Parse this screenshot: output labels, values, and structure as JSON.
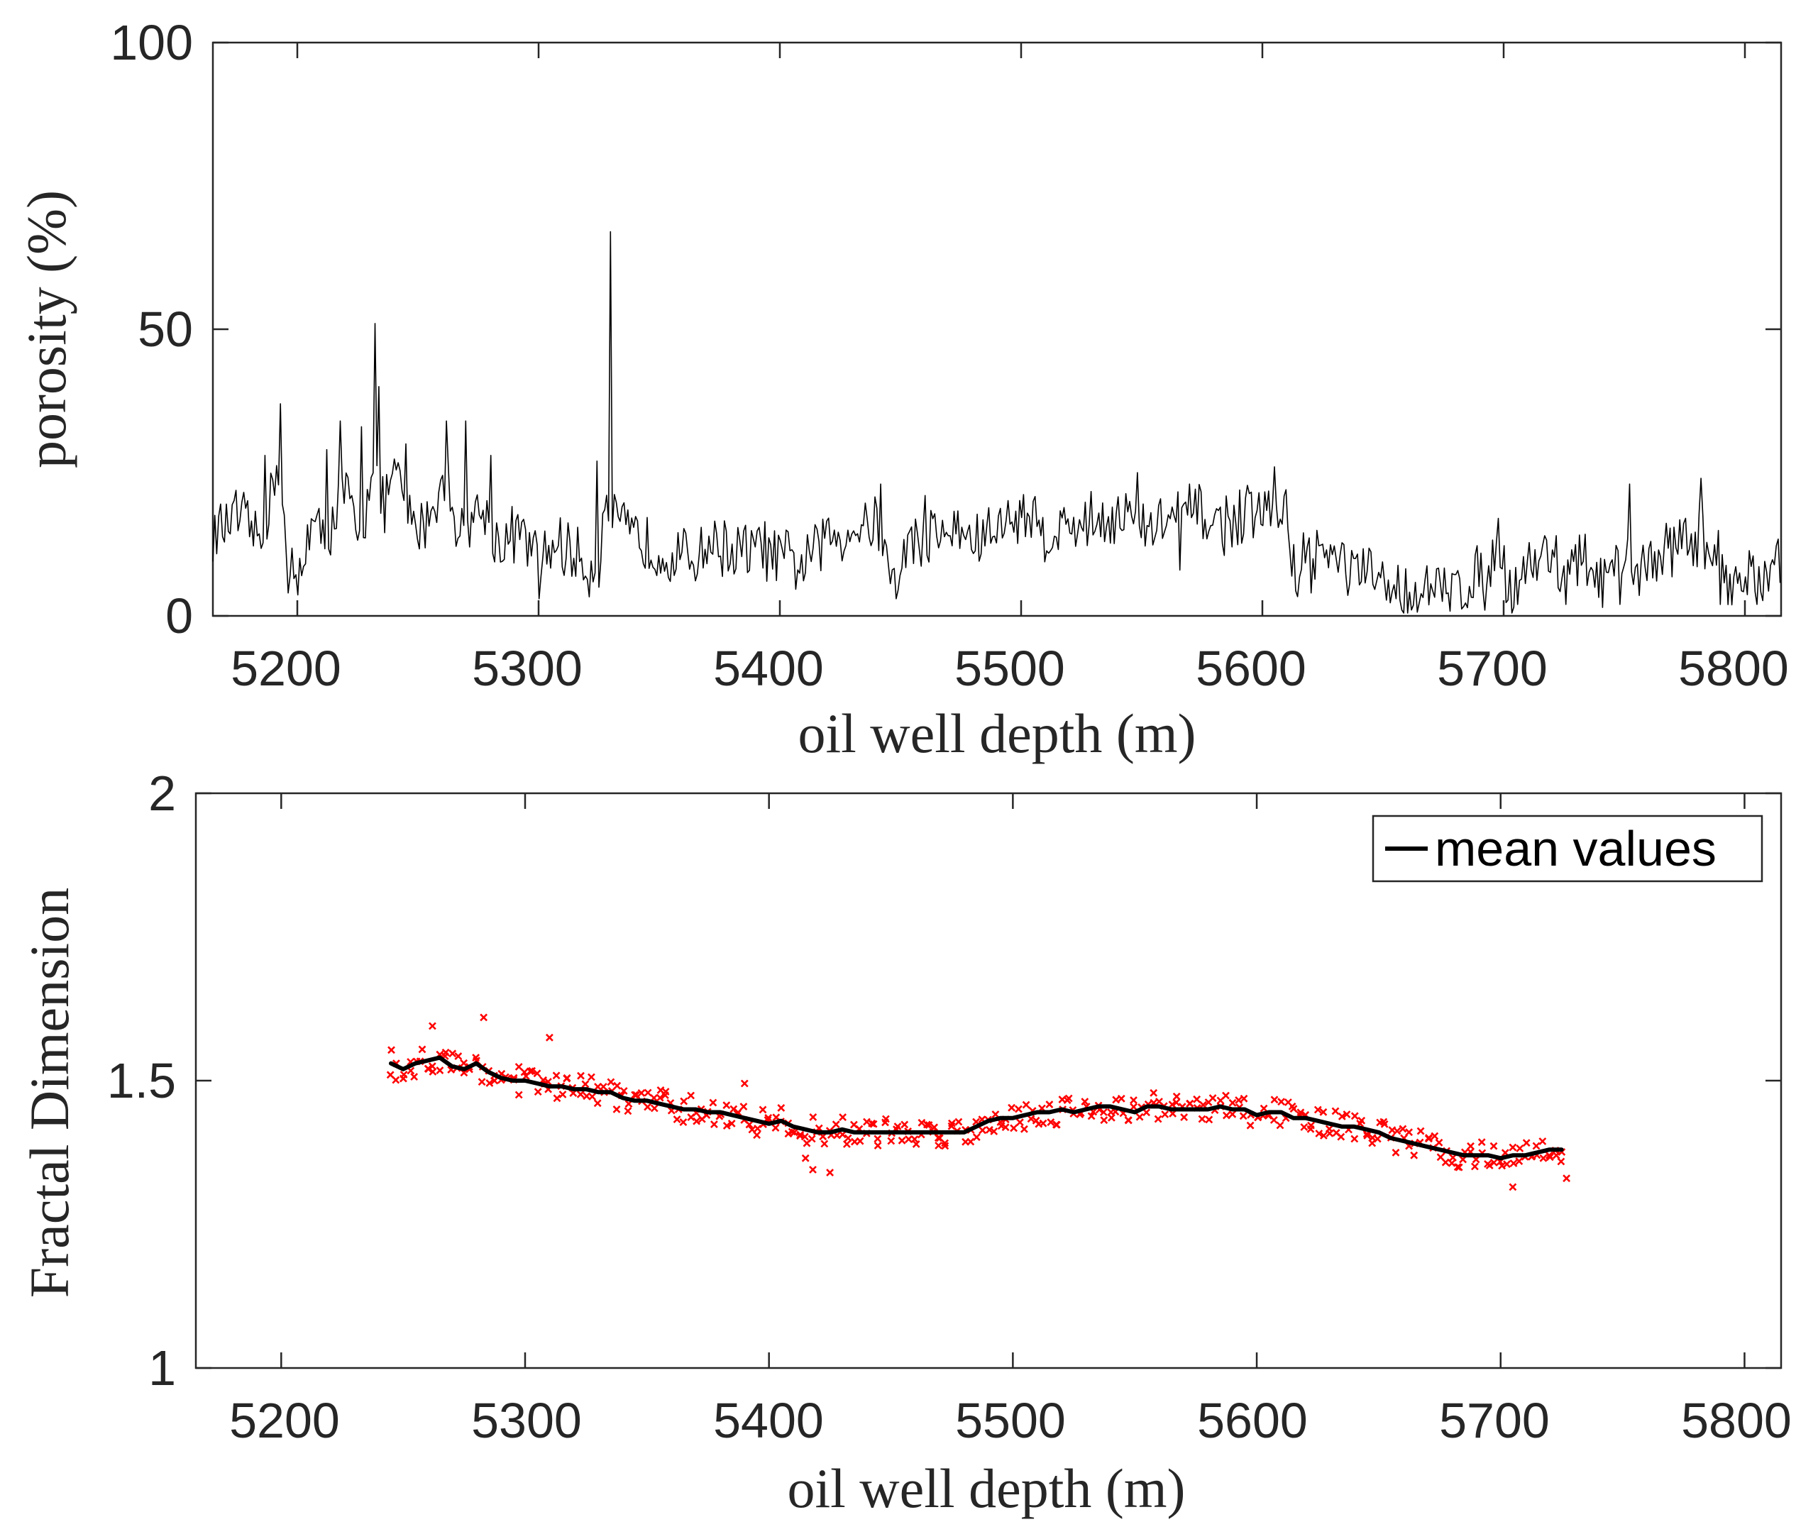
{
  "colors": {
    "axis": "#262626",
    "porosity_line": "#000000",
    "scatter": "#ff0000",
    "mean_line": "#000000"
  },
  "chart_data": [
    {
      "type": "line",
      "title": "",
      "xlabel": "oil well depth (m)",
      "ylabel": "porosity (%)",
      "xlim": [
        5165,
        5815
      ],
      "ylim": [
        0,
        100
      ],
      "xticks": [
        5200,
        5300,
        5400,
        5500,
        5600,
        5700,
        5800
      ],
      "yticks": [
        0,
        50,
        100
      ],
      "xtick_labels": [
        "5200",
        "5300",
        "5400",
        "5500",
        "5600",
        "5700",
        "5800"
      ],
      "ytick_labels": [
        "0",
        "50",
        "100"
      ],
      "series": [
        {
          "name": "porosity",
          "anchors": [
            [
              5165,
              14
            ],
            [
              5175,
              17
            ],
            [
              5185,
              13
            ],
            [
              5192,
              27
            ],
            [
              5196,
              9
            ],
            [
              5200,
              5
            ],
            [
              5205,
              16
            ],
            [
              5212,
              13
            ],
            [
              5220,
              22
            ],
            [
              5226,
              12
            ],
            [
              5232,
              30
            ],
            [
              5235,
              18
            ],
            [
              5240,
              25
            ],
            [
              5248,
              15
            ],
            [
              5255,
              18
            ],
            [
              5262,
              24
            ],
            [
              5268,
              14
            ],
            [
              5276,
              19
            ],
            [
              5284,
              12
            ],
            [
              5292,
              15
            ],
            [
              5300,
              9
            ],
            [
              5308,
              13
            ],
            [
              5316,
              10
            ],
            [
              5322,
              8
            ],
            [
              5328,
              18
            ],
            [
              5334,
              15
            ],
            [
              5342,
              13
            ],
            [
              5352,
              11
            ],
            [
              5362,
              10
            ],
            [
              5372,
              13
            ],
            [
              5382,
              11
            ],
            [
              5392,
              12
            ],
            [
              5400,
              10
            ],
            [
              5410,
              9
            ],
            [
              5420,
              14
            ],
            [
              5430,
              15
            ],
            [
              5440,
              17
            ],
            [
              5447,
              5
            ],
            [
              5452,
              12
            ],
            [
              5462,
              14
            ],
            [
              5472,
              15
            ],
            [
              5482,
              13
            ],
            [
              5492,
              16
            ],
            [
              5502,
              18
            ],
            [
              5512,
              14
            ],
            [
              5522,
              16
            ],
            [
              5532,
              17
            ],
            [
              5542,
              18
            ],
            [
              5552,
              15
            ],
            [
              5562,
              17
            ],
            [
              5572,
              18
            ],
            [
              5582,
              16
            ],
            [
              5592,
              17
            ],
            [
              5602,
              18
            ],
            [
              5610,
              17
            ],
            [
              5613,
              8
            ],
            [
              5622,
              12
            ],
            [
              5632,
              9
            ],
            [
              5642,
              7
            ],
            [
              5652,
              5
            ],
            [
              5662,
              4
            ],
            [
              5672,
              4
            ],
            [
              5682,
              5
            ],
            [
              5690,
              7
            ],
            [
              5697,
              12
            ],
            [
              5702,
              5
            ],
            [
              5710,
              9
            ],
            [
              5718,
              11
            ],
            [
              5725,
              6
            ],
            [
              5732,
              10
            ],
            [
              5740,
              6
            ],
            [
              5748,
              8
            ],
            [
              5756,
              9
            ],
            [
              5764,
              10
            ],
            [
              5772,
              13
            ],
            [
              5778,
              14
            ],
            [
              5786,
              12
            ],
            [
              5794,
              6
            ],
            [
              5800,
              8
            ],
            [
              5808,
              5
            ],
            [
              5815,
              9
            ]
          ],
          "spikes": [
            [
              5187,
              28
            ],
            [
              5193,
              37
            ],
            [
              5212,
              29
            ],
            [
              5218,
              34
            ],
            [
              5227,
              33
            ],
            [
              5232,
              51
            ],
            [
              5234,
              40
            ],
            [
              5245,
              30
            ],
            [
              5262,
              34
            ],
            [
              5270,
              34
            ],
            [
              5280,
              28
            ],
            [
              5324,
              27
            ],
            [
              5330,
              67
            ],
            [
              5442,
              23
            ],
            [
              5460,
              21
            ],
            [
              5548,
              25
            ],
            [
              5570,
              23
            ],
            [
              5605,
              26
            ],
            [
              5610,
              22
            ],
            [
              5698,
              17
            ],
            [
              5722,
              14
            ],
            [
              5752,
              23
            ],
            [
              5782,
              24
            ]
          ],
          "dips": [
            [
              5196,
              4
            ],
            [
              5300,
              3
            ],
            [
              5325,
              5
            ],
            [
              5448,
              3
            ],
            [
              5566,
              8
            ],
            [
              5620,
              4
            ],
            [
              5692,
              1
            ],
            [
              5706,
              2
            ],
            [
              5726,
              2
            ],
            [
              5748,
              2
            ],
            [
              5790,
              2
            ],
            [
              5805,
              2
            ]
          ],
          "noise_amplitude": 6,
          "sample_step": 0.8
        }
      ]
    },
    {
      "type": "scatter",
      "title": "",
      "xlabel": "oil well depth (m)",
      "ylabel": "Fractal Dimension",
      "xlim": [
        5165,
        5815
      ],
      "ylim": [
        1,
        2
      ],
      "xticks": [
        5200,
        5300,
        5400,
        5500,
        5600,
        5700,
        5800
      ],
      "yticks": [
        1,
        1.5,
        2
      ],
      "xtick_labels": [
        "5200",
        "5300",
        "5400",
        "5500",
        "5600",
        "5700",
        "5800"
      ],
      "ytick_labels": [
        "1",
        "1.5",
        "2"
      ],
      "legend": {
        "position": "top-right",
        "entries": [
          "mean values"
        ]
      },
      "series": [
        {
          "name": "mean values",
          "x": [
            5245,
            5250,
            5255,
            5260,
            5265,
            5270,
            5275,
            5280,
            5285,
            5290,
            5295,
            5300,
            5305,
            5310,
            5315,
            5320,
            5325,
            5330,
            5335,
            5340,
            5345,
            5350,
            5355,
            5360,
            5365,
            5370,
            5375,
            5380,
            5385,
            5390,
            5395,
            5400,
            5405,
            5410,
            5415,
            5420,
            5425,
            5430,
            5435,
            5440,
            5445,
            5450,
            5455,
            5460,
            5465,
            5470,
            5475,
            5480,
            5485,
            5490,
            5495,
            5500,
            5505,
            5510,
            5515,
            5520,
            5525,
            5530,
            5535,
            5540,
            5545,
            5550,
            5555,
            5560,
            5565,
            5570,
            5575,
            5580,
            5585,
            5590,
            5595,
            5600,
            5605,
            5610,
            5615,
            5620,
            5625,
            5630,
            5635,
            5640,
            5645,
            5650,
            5655,
            5660,
            5665,
            5670,
            5675,
            5680,
            5685,
            5690,
            5695,
            5700,
            5705,
            5710,
            5715,
            5720,
            5725
          ],
          "y": [
            1.53,
            1.52,
            1.53,
            1.535,
            1.54,
            1.525,
            1.52,
            1.53,
            1.515,
            1.505,
            1.5,
            1.5,
            1.495,
            1.49,
            1.49,
            1.485,
            1.485,
            1.48,
            1.48,
            1.47,
            1.465,
            1.465,
            1.46,
            1.455,
            1.45,
            1.45,
            1.445,
            1.445,
            1.44,
            1.435,
            1.43,
            1.425,
            1.43,
            1.42,
            1.415,
            1.41,
            1.41,
            1.415,
            1.41,
            1.41,
            1.41,
            1.41,
            1.41,
            1.41,
            1.41,
            1.41,
            1.41,
            1.41,
            1.42,
            1.43,
            1.435,
            1.435,
            1.44,
            1.445,
            1.445,
            1.45,
            1.445,
            1.45,
            1.455,
            1.455,
            1.45,
            1.445,
            1.455,
            1.455,
            1.45,
            1.45,
            1.45,
            1.45,
            1.455,
            1.45,
            1.45,
            1.44,
            1.445,
            1.445,
            1.435,
            1.435,
            1.43,
            1.425,
            1.42,
            1.42,
            1.415,
            1.41,
            1.4,
            1.395,
            1.39,
            1.385,
            1.38,
            1.375,
            1.37,
            1.37,
            1.37,
            1.365,
            1.37,
            1.37,
            1.375,
            1.38,
            1.38
          ]
        },
        {
          "name": "samples",
          "x_range": [
            5245,
            5727
          ],
          "x_step": 2.5,
          "per_x": 2,
          "spread": 0.05,
          "outliers": [
            [
              5283,
              1.61
            ],
            [
              5310,
              1.575
            ],
            [
              5262,
              1.595
            ],
            [
              5418,
              1.345
            ],
            [
              5425,
              1.34
            ],
            [
              5415,
              1.365
            ],
            [
              5390,
              1.495
            ],
            [
              5470,
              1.4
            ],
            [
              5705,
              1.315
            ],
            [
              5727,
              1.33
            ]
          ]
        }
      ]
    }
  ]
}
